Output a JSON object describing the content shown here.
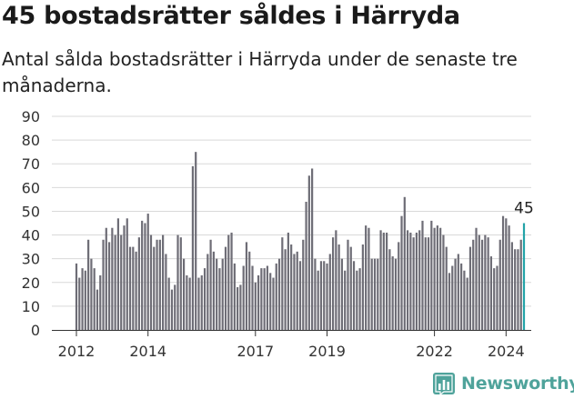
{
  "title": "45 bostadsrätter såldes i Härryda",
  "subtitle": "Antal sålda bostadsrätter i Härryda under de senaste tre månaderna.",
  "brand": {
    "name": "Newsworthy",
    "icon": "newsworthy-logo-icon",
    "color": "#4fa39b"
  },
  "colors": {
    "bar": "#6e6d76",
    "highlight": "#23a3a8",
    "grid": "#d9d9d9"
  },
  "chart_data": {
    "type": "bar",
    "ylim": [
      0,
      90
    ],
    "yticks": [
      0,
      10,
      20,
      30,
      40,
      50,
      60,
      70,
      80,
      90
    ],
    "xtick_labels": [
      {
        "label": "2012",
        "index": 0
      },
      {
        "label": "2014",
        "index": 24
      },
      {
        "label": "2017",
        "index": 60
      },
      {
        "label": "2019",
        "index": 84
      },
      {
        "label": "2022",
        "index": 120
      },
      {
        "label": "2024",
        "index": 144
      }
    ],
    "grid": true,
    "highlight_label": "45",
    "values": [
      28,
      22,
      26,
      25,
      38,
      30,
      26,
      17,
      23,
      38,
      43,
      37,
      43,
      40,
      47,
      40,
      44,
      47,
      35,
      35,
      33,
      39,
      46,
      45,
      49,
      40,
      35,
      38,
      38,
      40,
      32,
      22,
      17,
      19,
      40,
      39,
      30,
      23,
      22,
      69,
      75,
      22,
      23,
      26,
      32,
      38,
      33,
      30,
      26,
      30,
      35,
      40,
      41,
      28,
      18,
      19,
      27,
      37,
      33,
      27,
      20,
      23,
      26,
      26,
      27,
      24,
      22,
      28,
      30,
      39,
      34,
      41,
      36,
      32,
      33,
      29,
      38,
      54,
      65,
      68,
      30,
      25,
      29,
      29,
      28,
      32,
      39,
      42,
      36,
      30,
      25,
      38,
      35,
      29,
      25,
      26,
      36,
      44,
      43,
      30,
      30,
      30,
      42,
      41,
      41,
      34,
      31,
      30,
      37,
      48,
      56,
      42,
      41,
      39,
      41,
      42,
      46,
      39,
      39,
      46,
      43,
      44,
      43,
      40,
      35,
      24,
      27,
      30,
      32,
      28,
      25,
      22,
      35,
      38,
      43,
      40,
      38,
      40,
      39,
      31,
      26,
      27,
      38,
      48,
      47,
      44,
      37,
      34,
      34,
      38,
      45
    ]
  }
}
